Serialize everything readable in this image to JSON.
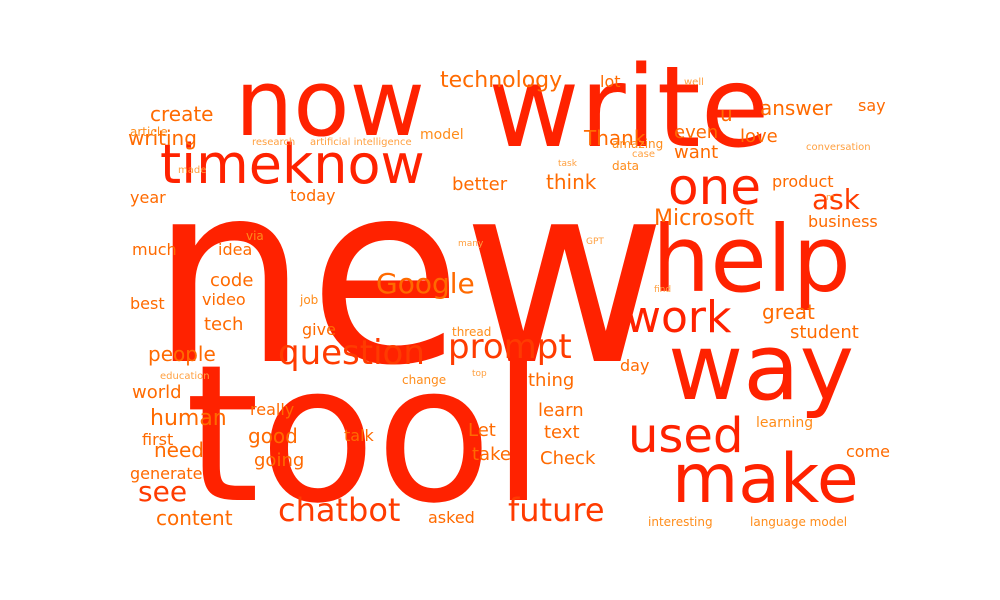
{
  "colors": {
    "background": "#ffffff",
    "red": "#ff2200",
    "red_orange": "#ff3b00",
    "orange": "#ff6a00",
    "orange_light": "#ff8c1a",
    "orange_pale": "#ffa040"
  },
  "words": [
    {
      "text": "new",
      "weight": 1.0,
      "color": "red"
    },
    {
      "text": "tool",
      "weight": 0.95,
      "color": "red"
    },
    {
      "text": "write",
      "weight": 0.72,
      "color": "red"
    },
    {
      "text": "now",
      "weight": 0.58,
      "color": "red"
    },
    {
      "text": "help",
      "weight": 0.55,
      "color": "red"
    },
    {
      "text": "way",
      "weight": 0.55,
      "color": "red"
    },
    {
      "text": "make",
      "weight": 0.42,
      "color": "red"
    },
    {
      "text": "timeknow",
      "weight": 0.32,
      "color": "red"
    },
    {
      "text": "one",
      "weight": 0.3,
      "color": "red"
    },
    {
      "text": "used",
      "weight": 0.3,
      "color": "red"
    },
    {
      "text": "work",
      "weight": 0.26,
      "color": "red"
    },
    {
      "text": "prompt",
      "weight": 0.22,
      "color": "red_orange"
    },
    {
      "text": "question",
      "weight": 0.21,
      "color": "red_orange"
    },
    {
      "text": "chatbot",
      "weight": 0.2,
      "color": "red_orange"
    },
    {
      "text": "future",
      "weight": 0.2,
      "color": "red_orange"
    },
    {
      "text": "Google",
      "weight": 0.18,
      "color": "orange"
    },
    {
      "text": "ask",
      "weight": 0.16,
      "color": "red_orange"
    },
    {
      "text": "see",
      "weight": 0.15,
      "color": "red_orange"
    },
    {
      "text": "technology",
      "weight": 0.13,
      "color": "orange"
    },
    {
      "text": "Microsoft",
      "weight": 0.13,
      "color": "orange"
    },
    {
      "text": "human",
      "weight": 0.13,
      "color": "orange"
    },
    {
      "text": "create",
      "weight": 0.11,
      "color": "orange"
    },
    {
      "text": "writing",
      "weight": 0.11,
      "color": "orange"
    },
    {
      "text": "answer",
      "weight": 0.11,
      "color": "orange"
    },
    {
      "text": "Thank",
      "weight": 0.11,
      "color": "orange"
    },
    {
      "text": "think",
      "weight": 0.11,
      "color": "orange"
    },
    {
      "text": "great",
      "weight": 0.11,
      "color": "orange"
    },
    {
      "text": "people",
      "weight": 0.1,
      "color": "orange"
    },
    {
      "text": "good",
      "weight": 0.11,
      "color": "orange"
    },
    {
      "text": "need",
      "weight": 0.11,
      "color": "orange"
    },
    {
      "text": "content",
      "weight": 0.1,
      "color": "orange"
    },
    {
      "text": "u",
      "weight": 0.11,
      "color": "orange"
    },
    {
      "text": "even",
      "weight": 0.1,
      "color": "orange"
    },
    {
      "text": "want",
      "weight": 0.09,
      "color": "orange"
    },
    {
      "text": "love",
      "weight": 0.09,
      "color": "orange"
    },
    {
      "text": "better",
      "weight": 0.09,
      "color": "orange"
    },
    {
      "text": "code",
      "weight": 0.09,
      "color": "orange"
    },
    {
      "text": "tech",
      "weight": 0.09,
      "color": "orange"
    },
    {
      "text": "student",
      "weight": 0.09,
      "color": "orange"
    },
    {
      "text": "thing",
      "weight": 0.09,
      "color": "orange"
    },
    {
      "text": "learn",
      "weight": 0.09,
      "color": "orange"
    },
    {
      "text": "text",
      "weight": 0.09,
      "color": "orange"
    },
    {
      "text": "Check",
      "weight": 0.09,
      "color": "orange"
    },
    {
      "text": "take",
      "weight": 0.08,
      "color": "orange"
    },
    {
      "text": "Let",
      "weight": 0.08,
      "color": "orange"
    },
    {
      "text": "going",
      "weight": 0.08,
      "color": "orange"
    },
    {
      "text": "world",
      "weight": 0.08,
      "color": "orange"
    },
    {
      "text": "product",
      "weight": 0.08,
      "color": "orange"
    },
    {
      "text": "today",
      "weight": 0.08,
      "color": "orange"
    },
    {
      "text": "business",
      "weight": 0.08,
      "color": "orange"
    },
    {
      "text": "lot",
      "weight": 0.08,
      "color": "orange"
    },
    {
      "text": "year",
      "weight": 0.08,
      "color": "orange"
    },
    {
      "text": "much",
      "weight": 0.08,
      "color": "orange"
    },
    {
      "text": "idea",
      "weight": 0.08,
      "color": "orange"
    },
    {
      "text": "best",
      "weight": 0.08,
      "color": "orange"
    },
    {
      "text": "video",
      "weight": 0.08,
      "color": "orange"
    },
    {
      "text": "give",
      "weight": 0.08,
      "color": "orange"
    },
    {
      "text": "day",
      "weight": 0.08,
      "color": "orange"
    },
    {
      "text": "really",
      "weight": 0.07,
      "color": "orange"
    },
    {
      "text": "first",
      "weight": 0.07,
      "color": "orange"
    },
    {
      "text": "talk",
      "weight": 0.07,
      "color": "orange"
    },
    {
      "text": "generate",
      "weight": 0.07,
      "color": "orange"
    },
    {
      "text": "asked",
      "weight": 0.07,
      "color": "orange"
    },
    {
      "text": "come",
      "weight": 0.07,
      "color": "orange"
    },
    {
      "text": "say",
      "weight": 0.07,
      "color": "orange"
    },
    {
      "text": "learning",
      "weight": 0.06,
      "color": "orange_light"
    },
    {
      "text": "interesting",
      "weight": 0.05,
      "color": "orange_light"
    },
    {
      "text": "language model",
      "weight": 0.05,
      "color": "orange_light"
    },
    {
      "text": "model",
      "weight": 0.05,
      "color": "orange_light"
    },
    {
      "text": "article",
      "weight": 0.05,
      "color": "orange_light"
    },
    {
      "text": "amazing",
      "weight": 0.05,
      "color": "orange_light"
    },
    {
      "text": "change",
      "weight": 0.05,
      "color": "orange_light"
    },
    {
      "text": "job",
      "weight": 0.05,
      "color": "orange_light"
    },
    {
      "text": "via",
      "weight": 0.05,
      "color": "orange_light"
    },
    {
      "text": "thread",
      "weight": 0.05,
      "color": "orange_light"
    },
    {
      "text": "data",
      "weight": 0.05,
      "color": "orange_light"
    },
    {
      "text": "well",
      "weight": 0.04,
      "color": "orange_pale"
    },
    {
      "text": "artificial intelligence",
      "weight": 0.04,
      "color": "orange_pale"
    },
    {
      "text": "research",
      "weight": 0.04,
      "color": "orange_pale"
    },
    {
      "text": "conversation",
      "weight": 0.04,
      "color": "orange_pale"
    },
    {
      "text": "case",
      "weight": 0.04,
      "color": "orange_pale"
    },
    {
      "text": "made",
      "weight": 0.04,
      "color": "orange_pale"
    },
    {
      "text": "education",
      "weight": 0.04,
      "color": "orange_pale"
    },
    {
      "text": "top",
      "weight": 0.04,
      "color": "orange_pale"
    },
    {
      "text": "many",
      "weight": 0.04,
      "color": "orange_pale"
    },
    {
      "text": "GPT",
      "weight": 0.04,
      "color": "orange_pale"
    },
    {
      "text": "find",
      "weight": 0.04,
      "color": "orange_pale"
    },
    {
      "text": "task",
      "weight": 0.04,
      "color": "orange_pale"
    },
    {
      "text": "m",
      "weight": 0.04,
      "color": "orange_pale"
    }
  ]
}
